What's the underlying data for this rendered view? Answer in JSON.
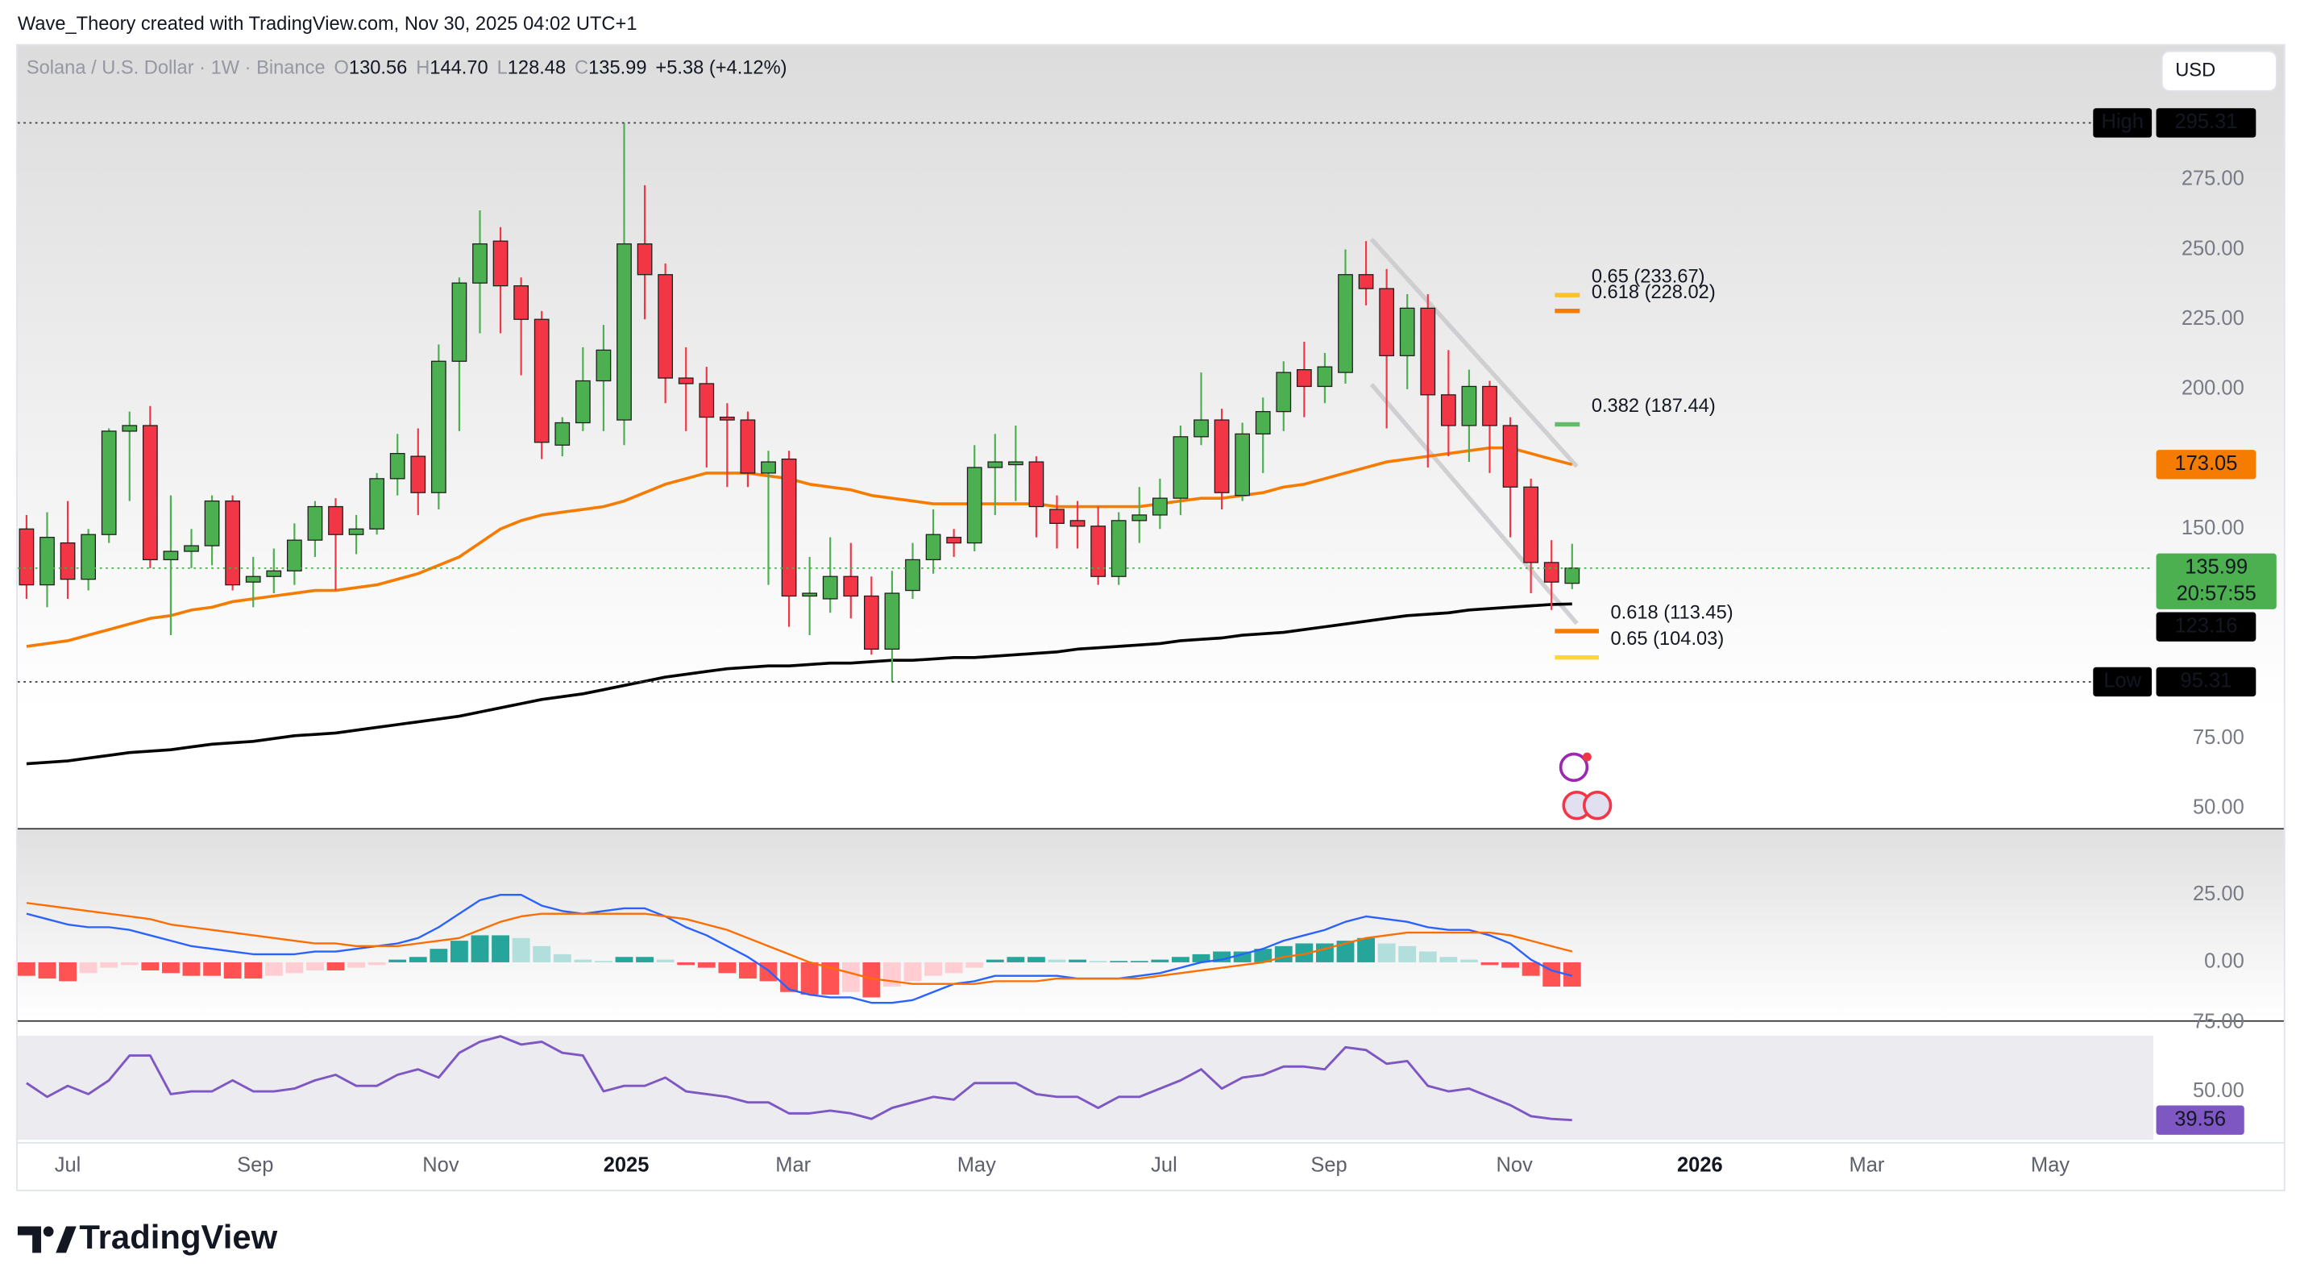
{
  "header": {
    "attribution": "Wave_Theory created with TradingView.com, Nov 30, 2025 04:02 UTC+1",
    "currency": "USD",
    "logo": "TradingView"
  },
  "chart_data": [
    {
      "type": "candlestick",
      "title": "Solana / U.S. Dollar · 1W · Binance",
      "ohlc_labels": [
        {
          "key": "O",
          "text": "130.56"
        },
        {
          "key": "H",
          "text": "144.70"
        },
        {
          "key": "L",
          "text": "128.48"
        },
        {
          "key": "C",
          "text": "135.99"
        }
      ],
      "change": "+5.38 (+4.12%)",
      "open": [
        150,
        130,
        145,
        132,
        148,
        185,
        187,
        139,
        142,
        144,
        160,
        131,
        133,
        135,
        146,
        158,
        148,
        150,
        168,
        176,
        163,
        210,
        238,
        253,
        237,
        225,
        180,
        188,
        203,
        189,
        252,
        241,
        204,
        202,
        190,
        189,
        170,
        175,
        126,
        125,
        133,
        126,
        107,
        128,
        139,
        147,
        145,
        172,
        173,
        174,
        157,
        153,
        151,
        133,
        153,
        155,
        161,
        183,
        189,
        162,
        184,
        192,
        207,
        201,
        206,
        241,
        236,
        212,
        229,
        198,
        187,
        201,
        187,
        165,
        138,
        130.56
      ],
      "high": [
        155,
        156,
        160,
        150,
        186,
        192,
        194,
        162,
        150,
        162,
        162,
        140,
        143,
        152,
        160,
        161,
        155,
        170,
        184,
        186,
        216,
        240,
        264,
        258,
        240,
        228,
        190,
        215,
        223,
        295.31,
        273,
        245,
        215,
        208,
        195,
        192,
        178,
        178,
        140,
        147,
        145,
        133,
        135,
        145,
        157,
        150,
        180,
        184,
        187,
        176,
        162,
        160,
        158,
        156,
        165,
        168,
        187,
        206,
        193,
        188,
        197,
        210,
        217,
        213,
        250,
        253,
        243,
        234,
        234,
        214,
        207,
        203,
        190,
        168,
        146,
        144.7
      ],
      "low": [
        125,
        122,
        125,
        128,
        145,
        160,
        136,
        112,
        136,
        137,
        128,
        122,
        127,
        130,
        140,
        128,
        141,
        148,
        162,
        155,
        157,
        185,
        220,
        220,
        205,
        175,
        176,
        185,
        185,
        180,
        225,
        195,
        185,
        172,
        165,
        165,
        130,
        115,
        112,
        120,
        118,
        105,
        95.31,
        125,
        134,
        140,
        142,
        155,
        160,
        147,
        143,
        143,
        130,
        130,
        145,
        150,
        155,
        180,
        157,
        160,
        170,
        185,
        190,
        195,
        202,
        230,
        186,
        200,
        172,
        176,
        174,
        170,
        147,
        127,
        121,
        128.48
      ],
      "close": [
        130,
        147,
        132,
        148,
        185,
        187,
        139,
        142,
        144,
        160,
        130,
        133,
        135,
        146,
        158,
        148,
        150,
        168,
        177,
        163,
        210,
        238,
        252,
        237,
        225,
        181,
        188,
        203,
        214,
        252,
        241,
        204,
        202,
        190,
        189,
        170,
        174,
        126,
        127,
        133,
        126,
        107,
        127,
        139,
        148,
        145,
        172,
        174,
        174,
        158,
        152,
        151,
        133,
        153,
        155,
        161,
        183,
        189,
        163,
        184,
        192,
        206,
        201,
        208,
        241,
        236,
        212,
        229,
        198,
        187,
        201,
        187,
        165,
        138,
        131,
        135.99
      ],
      "up_color": "#4caf50",
      "down_color": "#f23645",
      "lines": [
        {
          "color": "#f57c00",
          "values": [
            108,
            109,
            110,
            112,
            114,
            116,
            118,
            119,
            121,
            122,
            124,
            125,
            126,
            127,
            128,
            128,
            129,
            130,
            132,
            134,
            137,
            140,
            145,
            150,
            153,
            155,
            156,
            157,
            158,
            160,
            163,
            166,
            168,
            170,
            170,
            170,
            169,
            168,
            166,
            165,
            164,
            162,
            161,
            160,
            159,
            159,
            159,
            159,
            159,
            159,
            158,
            158,
            158,
            158,
            158,
            159,
            160,
            161,
            161,
            162,
            163,
            165,
            166,
            168,
            170,
            172,
            174,
            175,
            176,
            177,
            178,
            179,
            179,
            177,
            175,
            173.05
          ]
        },
        {
          "color": "#000000",
          "values": [
            66,
            66.5,
            67,
            68,
            69,
            70,
            70.5,
            71,
            72,
            73,
            73.5,
            74,
            75,
            76,
            76.5,
            77,
            78,
            79,
            80,
            81,
            82,
            83,
            84.5,
            86,
            87.5,
            89,
            90,
            91,
            92.5,
            94,
            95.5,
            97,
            98,
            99,
            100,
            100.5,
            101,
            101,
            101.5,
            102,
            102,
            102.5,
            103,
            103,
            103.5,
            104,
            104,
            104.5,
            105,
            105.5,
            106,
            107,
            107.5,
            108,
            108.5,
            109,
            110,
            110.5,
            111,
            112,
            112.5,
            113,
            114,
            115,
            116,
            117,
            118,
            119,
            119.5,
            120,
            121,
            121.5,
            122,
            122.5,
            123,
            123.16
          ]
        }
      ],
      "ylim": [
        42.7,
        323
      ],
      "yticks": [
        {
          "value": 50,
          "label": "50.00"
        },
        {
          "value": 75,
          "label": "75.00"
        },
        {
          "value": 150,
          "label": "150.00"
        },
        {
          "value": 200,
          "label": "200.00"
        },
        {
          "value": 225,
          "label": "225.00"
        },
        {
          "value": 250,
          "label": "250.00"
        },
        {
          "value": 275,
          "label": "275.00"
        }
      ],
      "fib_levels": [
        {
          "label": "0.65 (233.67)",
          "value": 233.67,
          "color": "#fbc02d"
        },
        {
          "label": "0.618 (228.02)",
          "value": 228.02,
          "color": "#f57c00"
        },
        {
          "label": "0.382 (187.44)",
          "value": 187.44,
          "color": "#66bb6a"
        },
        {
          "label": "0.618 (113.45)",
          "value": 113.45,
          "color": "#f57c00"
        },
        {
          "label": "0.65 (104.03)",
          "value": 104.03,
          "color": "#fdd835"
        }
      ],
      "high_label": "High",
      "low_label": "Low",
      "countdown": "20:57:55"
    },
    {
      "type": "macd",
      "histogram": [
        -5,
        -6,
        -7,
        -4,
        -2,
        -1,
        -3,
        -4,
        -5,
        -5,
        -6,
        -6,
        -5,
        -4,
        -3,
        -3,
        -2,
        -1,
        1,
        2,
        5,
        8,
        10,
        10,
        9,
        6,
        3,
        1,
        0.5,
        2,
        2,
        1,
        -1,
        -2,
        -4,
        -6,
        -7,
        -11,
        -12,
        -12,
        -11,
        -13,
        -9,
        -7,
        -5,
        -4,
        -2,
        1,
        2,
        2,
        1,
        1,
        0.5,
        0.5,
        0.5,
        1,
        2,
        3,
        4,
        4,
        5,
        6,
        7,
        7,
        8,
        9,
        7,
        6,
        4,
        2,
        1,
        -1,
        -2,
        -5,
        -9,
        -9
      ],
      "histogram_colors": [
        "#26a69a",
        "#b2dfdb",
        "#ffcdd2",
        "#ff5252"
      ],
      "lines": [
        {
          "color": "#2962ff",
          "values": [
            18,
            16,
            14,
            13,
            13,
            12,
            10,
            8,
            6,
            5,
            4,
            3,
            3,
            3,
            4,
            4,
            5,
            6,
            7,
            9,
            13,
            18,
            23,
            25,
            25,
            21,
            19,
            18,
            19,
            20,
            20,
            17,
            13,
            10,
            6,
            2,
            -3,
            -10,
            -12,
            -13,
            -13,
            -15,
            -15,
            -14,
            -11,
            -8,
            -7,
            -5,
            -5,
            -5,
            -5,
            -6,
            -6,
            -6,
            -5,
            -4,
            -2,
            0,
            1,
            3,
            5,
            8,
            10,
            12,
            15,
            17,
            16,
            15,
            13,
            12,
            12,
            10,
            7,
            1,
            -3,
            -5
          ]
        },
        {
          "color": "#ff6d00",
          "values": [
            22,
            21,
            20,
            19,
            18,
            17,
            16,
            14,
            13,
            12,
            11,
            10,
            9,
            8,
            7,
            7,
            6,
            6,
            6,
            7,
            8,
            9,
            12,
            15,
            17,
            18,
            18,
            18,
            18,
            18,
            18,
            17,
            16,
            14,
            12,
            9,
            6,
            3,
            0,
            -2,
            -4,
            -6,
            -7,
            -8,
            -8,
            -8,
            -8,
            -7,
            -7,
            -7,
            -6,
            -6,
            -6,
            -6,
            -6,
            -5,
            -4,
            -3,
            -2,
            -1,
            0,
            2,
            3,
            5,
            7,
            9,
            10,
            11,
            11,
            11,
            11,
            11,
            10,
            8,
            6,
            4
          ]
        }
      ],
      "ylim": [
        -21.2,
        48.9
      ],
      "yticks": [
        {
          "value": 0,
          "label": "0.00"
        },
        {
          "value": 25,
          "label": "25.00"
        }
      ]
    },
    {
      "type": "line",
      "color": "#7e57c2",
      "values": [
        53,
        48,
        52,
        49,
        54,
        63,
        63,
        49,
        50,
        50,
        54,
        50,
        50,
        51,
        54,
        56,
        52,
        52,
        56,
        58,
        55,
        64,
        68,
        70,
        67,
        68,
        64,
        63,
        50,
        52,
        52,
        55,
        50,
        49,
        48,
        46,
        46,
        42,
        42,
        43,
        42,
        40,
        44,
        46,
        48,
        47,
        53,
        53,
        53,
        49,
        48,
        48,
        44,
        48,
        48,
        51,
        54,
        58,
        51,
        55,
        56,
        59,
        59,
        58,
        66,
        65,
        60,
        61,
        52,
        50,
        51,
        48,
        45,
        41,
        40,
        39.56
      ],
      "ylim": [
        32.4,
        75
      ],
      "yticks": [
        {
          "value": 50,
          "label": "50.00"
        },
        {
          "value": 75,
          "label": "75.00"
        }
      ],
      "xlim": [
        -0.43,
        103.2
      ],
      "xticks": [
        {
          "value": 2.0,
          "label": "Jul"
        },
        {
          "value": 11.1,
          "label": "Sep"
        },
        {
          "value": 20.1,
          "label": "Nov"
        },
        {
          "value": 29.1,
          "label": "2025"
        },
        {
          "value": 37.2,
          "label": "Mar"
        },
        {
          "value": 46.1,
          "label": "May"
        },
        {
          "value": 55.2,
          "label": "Jul"
        },
        {
          "value": 63.2,
          "label": "Sep"
        },
        {
          "value": 72.2,
          "label": "Nov"
        },
        {
          "value": 81.2,
          "label": "2026"
        },
        {
          "value": 89.3,
          "label": "Mar"
        },
        {
          "value": 98.2,
          "label": "May"
        }
      ]
    }
  ]
}
